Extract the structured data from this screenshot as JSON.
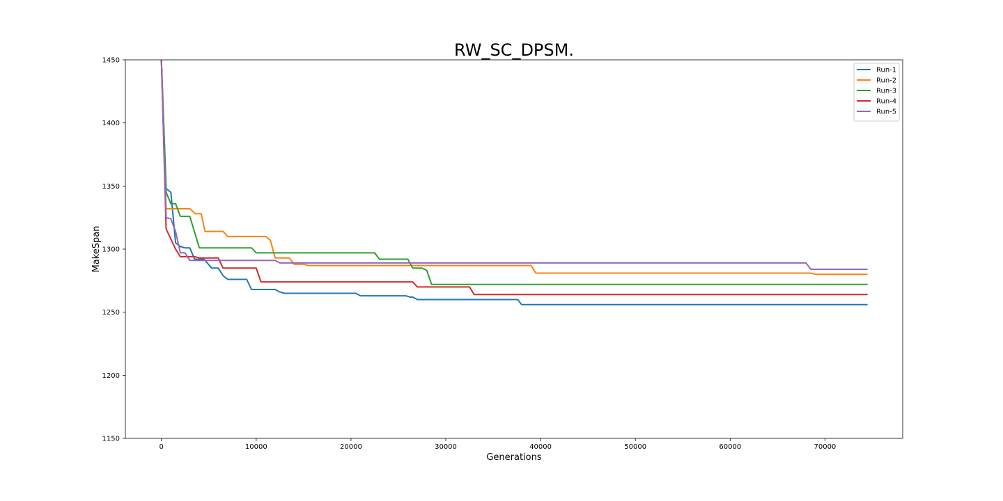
{
  "chart_data": {
    "type": "line",
    "title": "RW_SC_DPSM.",
    "xlabel": "Generations",
    "ylabel": "MakeSpan",
    "xlim": [
      -3800,
      78200
    ],
    "ylim": [
      1150,
      1450
    ],
    "xticks": [
      0,
      10000,
      20000,
      30000,
      40000,
      50000,
      60000,
      70000
    ],
    "yticks": [
      1150,
      1200,
      1250,
      1300,
      1350,
      1400,
      1450
    ],
    "grid": false,
    "legend_position": "top-right",
    "series": [
      {
        "name": "Run-1",
        "color": "#1f77b4",
        "points": [
          [
            0,
            1450
          ],
          [
            500,
            1348
          ],
          [
            1000,
            1345
          ],
          [
            1500,
            1305
          ],
          [
            2000,
            1302
          ],
          [
            2500,
            1301
          ],
          [
            3000,
            1301
          ],
          [
            3500,
            1292
          ],
          [
            4500,
            1292
          ],
          [
            5300,
            1285
          ],
          [
            6000,
            1285
          ],
          [
            6500,
            1279
          ],
          [
            7000,
            1276
          ],
          [
            9000,
            1276
          ],
          [
            9500,
            1268
          ],
          [
            12000,
            1268
          ],
          [
            12500,
            1266
          ],
          [
            13000,
            1265
          ],
          [
            20500,
            1265
          ],
          [
            21000,
            1263
          ],
          [
            25800,
            1263
          ],
          [
            26200,
            1262
          ],
          [
            26500,
            1262
          ],
          [
            27000,
            1260
          ],
          [
            37600,
            1260
          ],
          [
            38000,
            1256
          ],
          [
            74500,
            1256
          ]
        ]
      },
      {
        "name": "Run-2",
        "color": "#ff7f0e",
        "points": [
          [
            0,
            1450
          ],
          [
            500,
            1332
          ],
          [
            3000,
            1332
          ],
          [
            3600,
            1328
          ],
          [
            4200,
            1328
          ],
          [
            4600,
            1314
          ],
          [
            6500,
            1314
          ],
          [
            7000,
            1310
          ],
          [
            11000,
            1310
          ],
          [
            11500,
            1307
          ],
          [
            12000,
            1293
          ],
          [
            13500,
            1293
          ],
          [
            14000,
            1288
          ],
          [
            15000,
            1288
          ],
          [
            15500,
            1287
          ],
          [
            39000,
            1287
          ],
          [
            39500,
            1281
          ],
          [
            68500,
            1281
          ],
          [
            69000,
            1280
          ],
          [
            74500,
            1280
          ]
        ]
      },
      {
        "name": "Run-3",
        "color": "#2ca02c",
        "points": [
          [
            0,
            1450
          ],
          [
            500,
            1345
          ],
          [
            1000,
            1336
          ],
          [
            1500,
            1336
          ],
          [
            2000,
            1326
          ],
          [
            3000,
            1326
          ],
          [
            4000,
            1301
          ],
          [
            9500,
            1301
          ],
          [
            10000,
            1297
          ],
          [
            22500,
            1297
          ],
          [
            23000,
            1292
          ],
          [
            26000,
            1292
          ],
          [
            26500,
            1285
          ],
          [
            27500,
            1285
          ],
          [
            28000,
            1283
          ],
          [
            28500,
            1272
          ],
          [
            74500,
            1272
          ]
        ]
      },
      {
        "name": "Run-4",
        "color": "#d62728",
        "points": [
          [
            0,
            1450
          ],
          [
            500,
            1316
          ],
          [
            1000,
            1308
          ],
          [
            1500,
            1300
          ],
          [
            2000,
            1294
          ],
          [
            3000,
            1294
          ],
          [
            3500,
            1294
          ],
          [
            4000,
            1293
          ],
          [
            6000,
            1293
          ],
          [
            6500,
            1285
          ],
          [
            10000,
            1285
          ],
          [
            10500,
            1274
          ],
          [
            26500,
            1274
          ],
          [
            27000,
            1270
          ],
          [
            32500,
            1270
          ],
          [
            33000,
            1264
          ],
          [
            74500,
            1264
          ]
        ]
      },
      {
        "name": "Run-5",
        "color": "#9467bd",
        "points": [
          [
            0,
            1450
          ],
          [
            500,
            1325
          ],
          [
            1000,
            1324
          ],
          [
            1500,
            1314
          ],
          [
            2000,
            1297
          ],
          [
            2500,
            1297
          ],
          [
            3000,
            1291
          ],
          [
            12000,
            1291
          ],
          [
            12500,
            1289
          ],
          [
            68000,
            1289
          ],
          [
            68500,
            1284
          ],
          [
            74500,
            1284
          ]
        ]
      }
    ]
  }
}
